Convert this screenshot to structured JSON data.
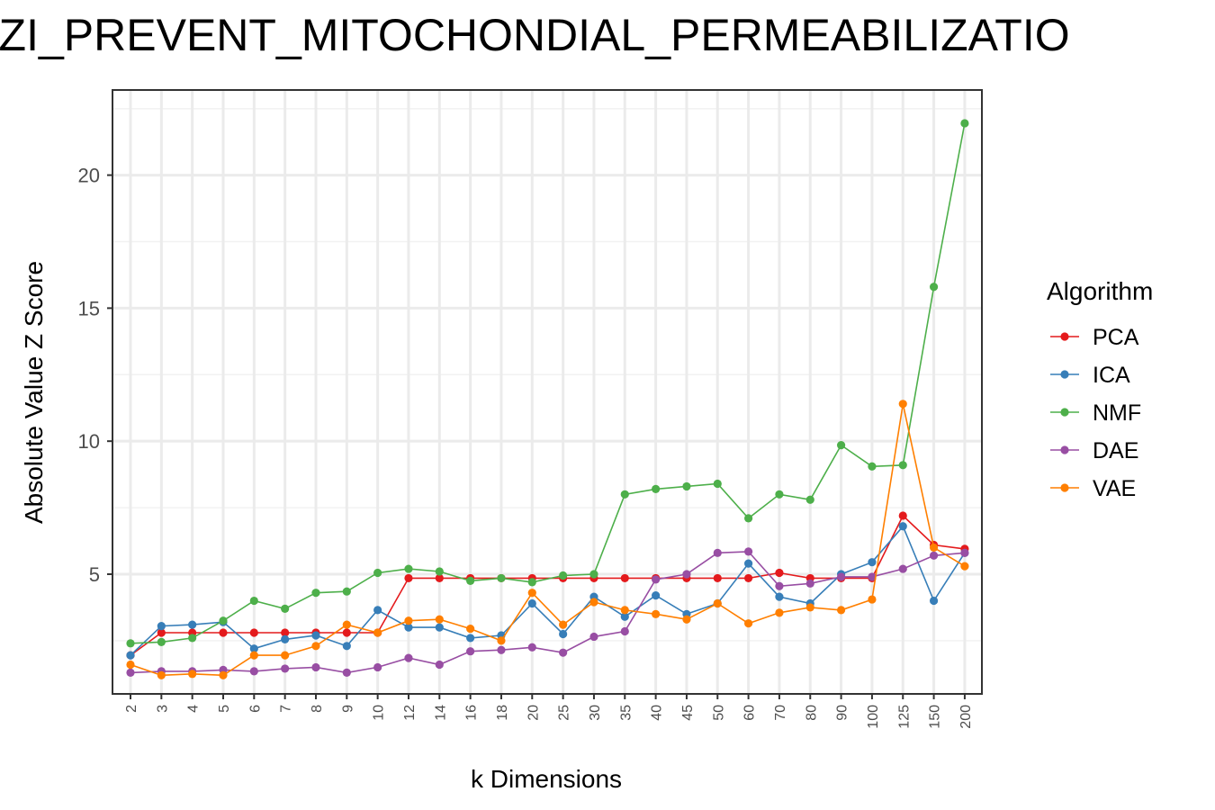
{
  "chart_data": {
    "type": "line",
    "title": "ZZI_PREVENT_MITOCHONDIAL_PERMEABILIZATIO",
    "xlabel": "k Dimensions",
    "ylabel": "Absolute Value Z Score",
    "categories": [
      "2",
      "3",
      "4",
      "5",
      "6",
      "7",
      "8",
      "9",
      "10",
      "12",
      "14",
      "16",
      "18",
      "20",
      "25",
      "30",
      "35",
      "40",
      "45",
      "50",
      "60",
      "70",
      "80",
      "90",
      "100",
      "125",
      "150",
      "200"
    ],
    "yticks": [
      5,
      10,
      15,
      20
    ],
    "ylim": [
      0.5,
      23.2
    ],
    "grid": true,
    "legend": {
      "title": "Algorithm",
      "position": "right"
    },
    "series": [
      {
        "name": "PCA",
        "color": "#E41A1C",
        "values": [
          1.95,
          2.8,
          2.8,
          2.8,
          2.8,
          2.8,
          2.8,
          2.8,
          2.8,
          4.85,
          4.85,
          4.85,
          4.85,
          4.85,
          4.85,
          4.85,
          4.85,
          4.85,
          4.85,
          4.85,
          4.85,
          5.05,
          4.85,
          4.85,
          4.85,
          7.2,
          6.1,
          5.95
        ]
      },
      {
        "name": "ICA",
        "color": "#377EB8",
        "values": [
          1.95,
          3.05,
          3.1,
          3.2,
          2.2,
          2.55,
          2.7,
          2.3,
          3.65,
          3.0,
          3.0,
          2.6,
          2.7,
          3.9,
          2.75,
          4.15,
          3.4,
          4.2,
          3.5,
          3.9,
          5.4,
          4.15,
          3.9,
          5.0,
          5.45,
          6.8,
          4.0,
          5.8
        ]
      },
      {
        "name": "NMF",
        "color": "#4DAF4A",
        "values": [
          2.4,
          2.45,
          2.6,
          3.25,
          4.0,
          3.7,
          4.3,
          4.35,
          5.05,
          5.2,
          5.1,
          4.75,
          4.85,
          4.7,
          4.95,
          5.0,
          8.0,
          8.2,
          8.3,
          8.4,
          7.1,
          8.0,
          7.8,
          9.85,
          9.05,
          9.1,
          15.8,
          21.95
        ]
      },
      {
        "name": "DAE",
        "color": "#984EA3",
        "values": [
          1.3,
          1.35,
          1.35,
          1.4,
          1.35,
          1.45,
          1.5,
          1.3,
          1.5,
          1.85,
          1.6,
          2.1,
          2.15,
          2.25,
          2.05,
          2.65,
          2.85,
          4.8,
          5.0,
          5.8,
          5.85,
          4.55,
          4.65,
          4.9,
          4.9,
          5.2,
          5.7,
          5.8
        ]
      },
      {
        "name": "VAE",
        "color": "#FF7F00",
        "values": [
          1.6,
          1.2,
          1.25,
          1.2,
          1.95,
          1.95,
          2.3,
          3.1,
          2.8,
          3.25,
          3.3,
          2.95,
          2.5,
          4.3,
          3.1,
          3.95,
          3.65,
          3.5,
          3.3,
          3.9,
          3.15,
          3.55,
          3.75,
          3.65,
          4.05,
          11.4,
          6.0,
          5.3
        ]
      }
    ]
  }
}
